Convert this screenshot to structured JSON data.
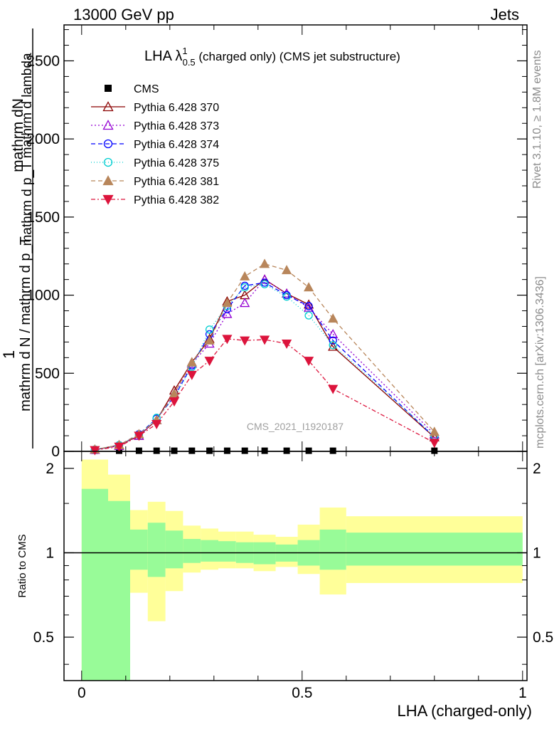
{
  "header": {
    "left": "13000 GeV pp",
    "right": "Jets"
  },
  "side": {
    "rivet": "Rivet 3.1.10, ≥ 1.8M events",
    "mcplots": "mcplots.cern.ch [arXiv:1306.3436]"
  },
  "chart_data": [
    {
      "type": "line",
      "title": "LHA λ¹₀.₅ (charged only) (CMS jet substructure)",
      "title_main": "LHA λ",
      "title_sup": "1",
      "title_sub": "0.5",
      "title_rest": " (charged only) (CMS jet substructure)",
      "watermark": "CMS_2021_I1920187",
      "ylabel_top": "1",
      "ylabel_num": "mathrm dN",
      "ylabel_num2": "mathrm d p_T mathrm d lambda",
      "ylabel_den": "mathrm d N / mathrm d p_T",
      "xlim": [
        -0.04,
        1.01
      ],
      "ylim": [
        0,
        2730
      ],
      "yticks": [
        0,
        500,
        1000,
        1500,
        2000,
        2500
      ],
      "ytick_labels": [
        "0",
        "500",
        "1000",
        "1500",
        "2000",
        "2500"
      ],
      "x": [
        0.03,
        0.085,
        0.13,
        0.17,
        0.21,
        0.25,
        0.29,
        0.33,
        0.37,
        0.415,
        0.465,
        0.515,
        0.57,
        0.8
      ],
      "series": [
        {
          "name": "CMS",
          "color": "#000000",
          "marker": "square",
          "dash": "",
          "values": [
            4,
            4,
            4,
            4,
            4,
            4,
            4,
            4,
            4,
            4,
            4,
            4,
            4,
            4
          ]
        },
        {
          "name": "Pythia 6.428 370",
          "color": "#8b0000",
          "marker": "triangle-open",
          "dash": "",
          "values": [
            10,
            40,
            100,
            200,
            390,
            570,
            720,
            960,
            1000,
            1100,
            1010,
            940,
            670,
            90
          ]
        },
        {
          "name": "Pythia 6.428 373",
          "color": "#9400d3",
          "marker": "triangle-open",
          "dash": "2,3",
          "values": [
            10,
            35,
            100,
            200,
            370,
            560,
            690,
            880,
            950,
            1100,
            1010,
            920,
            750,
            110
          ]
        },
        {
          "name": "Pythia 6.428 374",
          "color": "#0000ff",
          "marker": "circle-open",
          "dash": "6,4",
          "values": [
            10,
            40,
            110,
            210,
            350,
            550,
            750,
            910,
            1060,
            1080,
            1000,
            930,
            710,
            90
          ]
        },
        {
          "name": "Pythia 6.428 375",
          "color": "#00ced1",
          "marker": "circle-open",
          "dash": "1,3",
          "values": [
            12,
            40,
            105,
            215,
            345,
            540,
            780,
            930,
            1050,
            1070,
            990,
            870,
            680,
            100
          ]
        },
        {
          "name": "Pythia 6.428 381",
          "color": "#b8865b",
          "marker": "triangle",
          "dash": "6,4",
          "values": [
            12,
            40,
            110,
            200,
            370,
            570,
            710,
            950,
            1120,
            1200,
            1160,
            1050,
            850,
            125
          ]
        },
        {
          "name": "Pythia 6.428 382",
          "color": "#dc143c",
          "marker": "triangle-down",
          "dash": "6,3,2,3",
          "values": [
            8,
            30,
            100,
            175,
            320,
            490,
            580,
            720,
            710,
            715,
            690,
            580,
            400,
            55
          ]
        }
      ]
    },
    {
      "type": "area",
      "ylabel": "Ratio to CMS",
      "xlabel": "LHA (charged-only)",
      "xlim": [
        -0.04,
        1.01
      ],
      "xticks": [
        0,
        0.5,
        1
      ],
      "xtick_labels": [
        "0",
        "0.5",
        "1"
      ],
      "ylim": [
        0.35,
        2.3
      ],
      "log_scale": true,
      "yticks": [
        0.5,
        1,
        2
      ],
      "ytick_labels": [
        "0.5",
        "1",
        "2"
      ],
      "bins": [
        {
          "x0": 0.0,
          "x1": 0.06,
          "inner": [
            0.3,
            1.69
          ],
          "outer": [
            0.3,
            2.15
          ]
        },
        {
          "x0": 0.06,
          "x1": 0.11,
          "inner": [
            0.3,
            1.53
          ],
          "outer": [
            0.58,
            1.9
          ]
        },
        {
          "x0": 0.11,
          "x1": 0.15,
          "inner": [
            0.87,
            1.21
          ],
          "outer": [
            0.72,
            1.42
          ]
        },
        {
          "x0": 0.15,
          "x1": 0.19,
          "inner": [
            0.82,
            1.28
          ],
          "outer": [
            0.57,
            1.52
          ]
        },
        {
          "x0": 0.19,
          "x1": 0.23,
          "inner": [
            0.88,
            1.2
          ],
          "outer": [
            0.73,
            1.41
          ]
        },
        {
          "x0": 0.23,
          "x1": 0.27,
          "inner": [
            0.92,
            1.12
          ],
          "outer": [
            0.85,
            1.25
          ]
        },
        {
          "x0": 0.27,
          "x1": 0.31,
          "inner": [
            0.93,
            1.11
          ],
          "outer": [
            0.87,
            1.22
          ]
        },
        {
          "x0": 0.31,
          "x1": 0.35,
          "inner": [
            0.93,
            1.1
          ],
          "outer": [
            0.88,
            1.19
          ]
        },
        {
          "x0": 0.35,
          "x1": 0.39,
          "inner": [
            0.92,
            1.09
          ],
          "outer": [
            0.88,
            1.19
          ]
        },
        {
          "x0": 0.39,
          "x1": 0.44,
          "inner": [
            0.91,
            1.09
          ],
          "outer": [
            0.86,
            1.16
          ]
        },
        {
          "x0": 0.44,
          "x1": 0.49,
          "inner": [
            0.93,
            1.07
          ],
          "outer": [
            0.89,
            1.14
          ]
        },
        {
          "x0": 0.49,
          "x1": 0.54,
          "inner": [
            0.9,
            1.11
          ],
          "outer": [
            0.84,
            1.26
          ]
        },
        {
          "x0": 0.54,
          "x1": 0.6,
          "inner": [
            0.87,
            1.21
          ],
          "outer": [
            0.71,
            1.45
          ]
        },
        {
          "x0": 0.6,
          "x1": 1.0,
          "inner": [
            0.9,
            1.18
          ],
          "outer": [
            0.78,
            1.35
          ]
        }
      ],
      "inner_color": "#98fb98",
      "outer_color": "#ffff99"
    }
  ]
}
